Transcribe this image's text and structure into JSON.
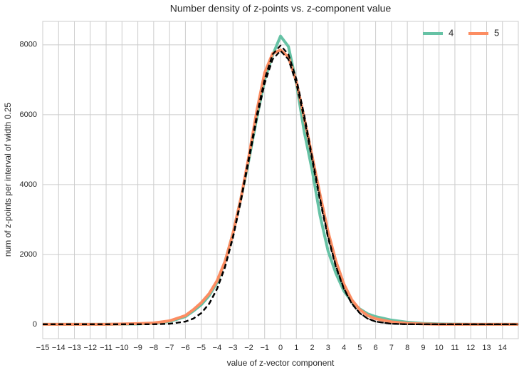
{
  "chart_data": {
    "type": "line",
    "title": "Number density of z-points vs. z-component value",
    "xlabel": "value of z-vector component",
    "ylabel": "num of z-points per interval of width 0.25",
    "x": [
      -15,
      -14,
      -13,
      -12,
      -11,
      -10,
      -9,
      -8,
      -7,
      -6,
      -5.5,
      -5,
      -4.5,
      -4,
      -3.5,
      -3,
      -2.5,
      -2,
      -1.5,
      -1,
      -0.5,
      0,
      0.5,
      1,
      1.5,
      2,
      2.5,
      3,
      3.5,
      4,
      4.5,
      5,
      5.5,
      6,
      7,
      8,
      9,
      10,
      11,
      12,
      13,
      14,
      15
    ],
    "series": [
      {
        "name": "4",
        "color": "#66c2a5",
        "linestyle": "solid",
        "values": [
          0,
          0,
          0,
          0,
          0,
          5,
          10,
          30,
          80,
          220,
          380,
          560,
          820,
          1200,
          1800,
          2600,
          3600,
          4700,
          5900,
          7000,
          7700,
          8250,
          7950,
          6900,
          5500,
          4400,
          3100,
          2100,
          1450,
          950,
          650,
          440,
          300,
          220,
          120,
          60,
          25,
          10,
          5,
          0,
          0,
          0,
          0
        ]
      },
      {
        "name": "5",
        "color": "#fc8d62",
        "linestyle": "solid",
        "values": [
          0,
          0,
          0,
          0,
          0,
          10,
          20,
          40,
          100,
          250,
          420,
          620,
          880,
          1250,
          1800,
          2600,
          3600,
          4800,
          6100,
          7200,
          7750,
          7850,
          7650,
          6950,
          5900,
          4800,
          3700,
          2650,
          1800,
          1150,
          700,
          420,
          250,
          160,
          70,
          30,
          10,
          0,
          0,
          0,
          0,
          0,
          0
        ]
      },
      {
        "color": "#000000",
        "linestyle": "dashed",
        "values": [
          0,
          0,
          0,
          0,
          0,
          0,
          0,
          2,
          15,
          79,
          165,
          323,
          595,
          1027,
          1659,
          2517,
          3583,
          4778,
          5983,
          7023,
          7727,
          7980,
          7727,
          7023,
          5983,
          4778,
          3583,
          2517,
          1659,
          1027,
          595,
          323,
          165,
          79,
          15,
          2,
          0,
          0,
          0,
          0,
          0,
          0,
          0
        ]
      },
      {
        "color": "#000000",
        "linestyle": "dashed",
        "values": [
          0,
          0,
          0,
          0,
          0,
          0,
          0,
          2,
          15,
          78,
          161,
          317,
          585,
          1010,
          1630,
          2470,
          3515,
          4690,
          5870,
          6890,
          7580,
          7830,
          7580,
          6890,
          5870,
          4690,
          3515,
          2470,
          1630,
          1010,
          585,
          317,
          161,
          78,
          15,
          2,
          0,
          0,
          0,
          0,
          0,
          0,
          0
        ]
      }
    ],
    "xlim": [
      -15,
      15
    ],
    "ylim": [
      -410,
      8670
    ],
    "xticks": [
      {
        "value": -15,
        "label": "−15"
      },
      {
        "value": -14,
        "label": "−14"
      },
      {
        "value": -13,
        "label": "−13"
      },
      {
        "value": -12,
        "label": "−12"
      },
      {
        "value": -11,
        "label": "−11"
      },
      {
        "value": -10,
        "label": "−10"
      },
      {
        "value": -9,
        "label": "−9"
      },
      {
        "value": -8,
        "label": "−8"
      },
      {
        "value": -7,
        "label": "−7"
      },
      {
        "value": -6,
        "label": "−6"
      },
      {
        "value": -5,
        "label": "−5"
      },
      {
        "value": -4,
        "label": "−4"
      },
      {
        "value": -3,
        "label": "−3"
      },
      {
        "value": -2,
        "label": "−2"
      },
      {
        "value": -1,
        "label": "−1"
      },
      0,
      1,
      2,
      3,
      4,
      5,
      6,
      7,
      8,
      9,
      10,
      11,
      12,
      13,
      14
    ],
    "yticks": [
      0,
      2000,
      4000,
      6000,
      8000
    ],
    "grid": true,
    "legend": "upper right"
  }
}
